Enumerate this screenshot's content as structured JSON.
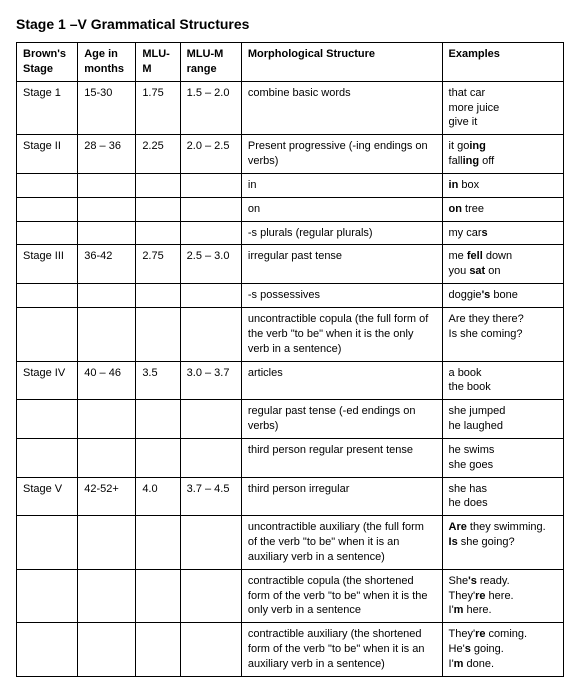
{
  "title": "Stage 1 –V Grammatical Structures",
  "headers": {
    "stage": "Brown's Stage",
    "age": "Age in months",
    "mlum": "MLU-M",
    "range": "MLU-M range",
    "morph": "Morphological Structure",
    "ex": "Examples"
  },
  "rows": [
    {
      "stage": "Stage 1",
      "age": "15-30",
      "mlum": "1.75",
      "range": "1.5 – 2.0",
      "morph": "combine basic words",
      "ex": [
        "that car",
        "more juice",
        "give it"
      ]
    },
    {
      "stage": "Stage II",
      "age": "28 – 36",
      "mlum": "2.25",
      "range": "2.0 – 2.5",
      "morph": "Present progressive (-ing endings on verbs)",
      "ex": [
        "it go<b>ing</b>",
        "fall<b>ing</b> off"
      ]
    },
    {
      "stage": "",
      "age": "",
      "mlum": "",
      "range": "",
      "morph": "in",
      "ex": [
        "<b>in</b> box"
      ]
    },
    {
      "stage": "",
      "age": "",
      "mlum": "",
      "range": "",
      "morph": "on",
      "ex": [
        "<b>on</b> tree"
      ]
    },
    {
      "stage": "",
      "age": "",
      "mlum": "",
      "range": "",
      "morph": "-s plurals (regular plurals)",
      "ex": [
        "my car<b>s</b>"
      ]
    },
    {
      "stage": "Stage III",
      "age": "36-42",
      "mlum": "2.75",
      "range": "2.5 – 3.0",
      "morph": "irregular past tense",
      "ex": [
        "me <b>fell</b> down",
        "you <b>sat</b> on"
      ]
    },
    {
      "stage": "",
      "age": "",
      "mlum": "",
      "range": "",
      "morph": "-s possessives",
      "ex": [
        "doggie<b>'s</b> bone"
      ]
    },
    {
      "stage": "",
      "age": "",
      "mlum": "",
      "range": "",
      "morph": "uncontractible copula (the full form of the verb \"to be\" when it is the only verb in a sentence)",
      "ex": [
        "Are they there?",
        "Is she coming?"
      ]
    },
    {
      "stage": "Stage IV",
      "age": "40 – 46",
      "mlum": "3.5",
      "range": "3.0 – 3.7",
      "morph": "articles",
      "ex": [
        "a book",
        "the book"
      ]
    },
    {
      "stage": "",
      "age": "",
      "mlum": "",
      "range": "",
      "morph": "regular past tense (-ed endings on verbs)",
      "ex": [
        "she jumped",
        "he laughed"
      ]
    },
    {
      "stage": "",
      "age": "",
      "mlum": "",
      "range": "",
      "morph": "third person regular present tense",
      "ex": [
        "he swims",
        "she goes"
      ]
    },
    {
      "stage": "Stage V",
      "age": "42-52+",
      "mlum": "4.0",
      "range": "3.7 – 4.5",
      "morph": "third person irregular",
      "ex": [
        "she has",
        "he does"
      ]
    },
    {
      "stage": "",
      "age": "",
      "mlum": "",
      "range": "",
      "morph": "uncontractible auxiliary (the full form of the verb \"to be\" when it is an auxiliary verb in a sentence)",
      "ex": [
        "<b>Are</b> they swimming.",
        "<b>Is</b> she going?"
      ]
    },
    {
      "stage": "",
      "age": "",
      "mlum": "",
      "range": "",
      "morph": "contractible copula (the shortened form of the verb \"to be\" when it is the only verb in a sentence",
      "ex": [
        "She<b>'s</b> ready.",
        "They'<b>re</b> here.",
        "I'<b>m</b> here."
      ]
    },
    {
      "stage": "",
      "age": "",
      "mlum": "",
      "range": "",
      "morph": "contractible auxiliary (the shortened form of the verb \"to be\" when it is an auxiliary verb in a sentence)",
      "ex": [
        "They'<b>re</b> coming.",
        "He'<b>s</b> going.",
        "I'<b>m</b> done."
      ]
    }
  ]
}
